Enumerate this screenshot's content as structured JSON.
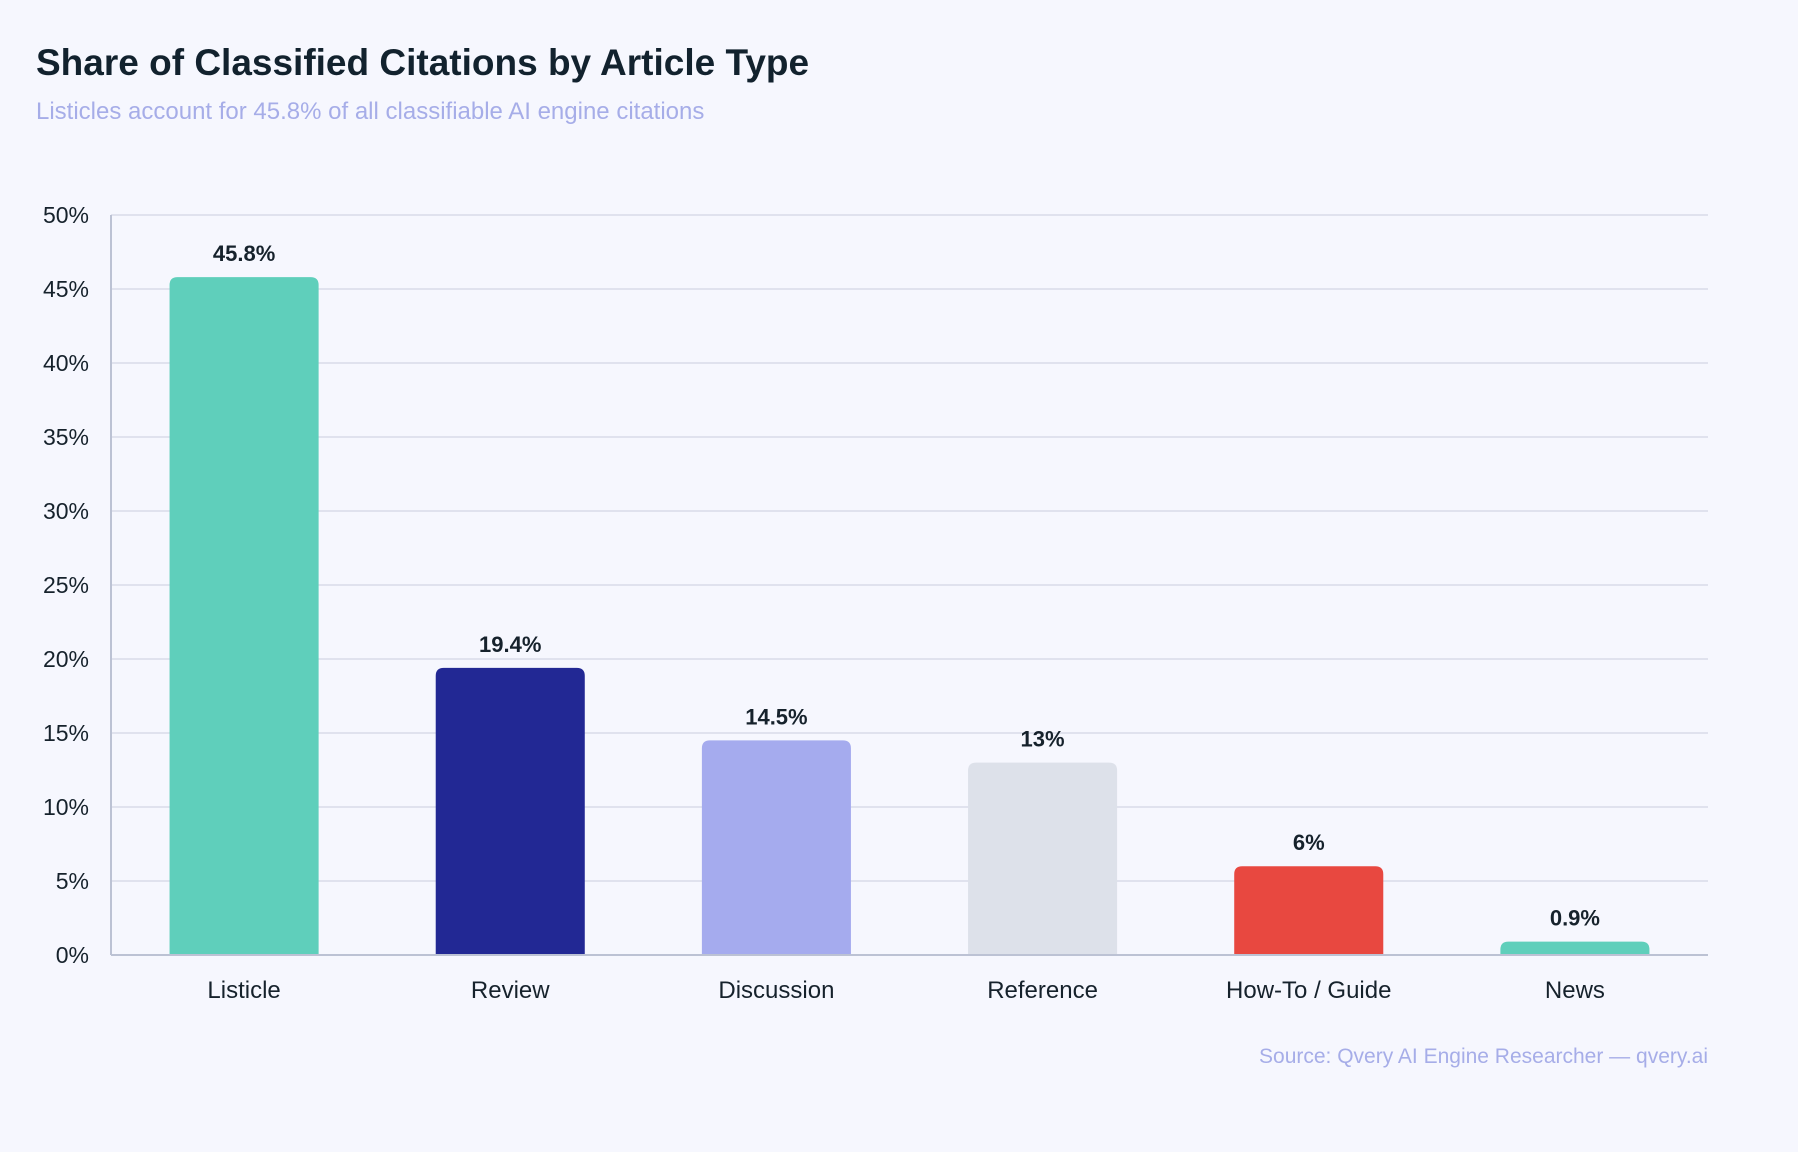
{
  "title": "Share of Classified Citations by Article Type",
  "subtitle": "Listicles account for 45.8% of all classifiable AI engine citations",
  "source": "Source: Qvery AI Engine Researcher — qvery.ai",
  "chart_data": {
    "type": "bar",
    "title": "Share of Classified Citations by Article Type",
    "subtitle": "Listicles account for 45.8% of all classifiable AI engine citations",
    "xlabel": "",
    "ylabel": "",
    "ylim": [
      0,
      50
    ],
    "yticks": [
      0,
      5,
      10,
      15,
      20,
      25,
      30,
      35,
      40,
      45,
      50
    ],
    "ytick_format": "{v}%",
    "grid": true,
    "legend": "none",
    "categories": [
      "Listicle",
      "Review",
      "Discussion",
      "Reference",
      "How-To / Guide",
      "News"
    ],
    "values": [
      45.8,
      19.4,
      14.5,
      13,
      6,
      0.9
    ],
    "value_labels": [
      "45.8%",
      "19.4%",
      "14.5%",
      "13%",
      "6%",
      "0.9%"
    ],
    "colors": [
      "#5fcfbb",
      "#222894",
      "#a5abee",
      "#dde1ea",
      "#e84840",
      "#5fcfbb"
    ]
  }
}
